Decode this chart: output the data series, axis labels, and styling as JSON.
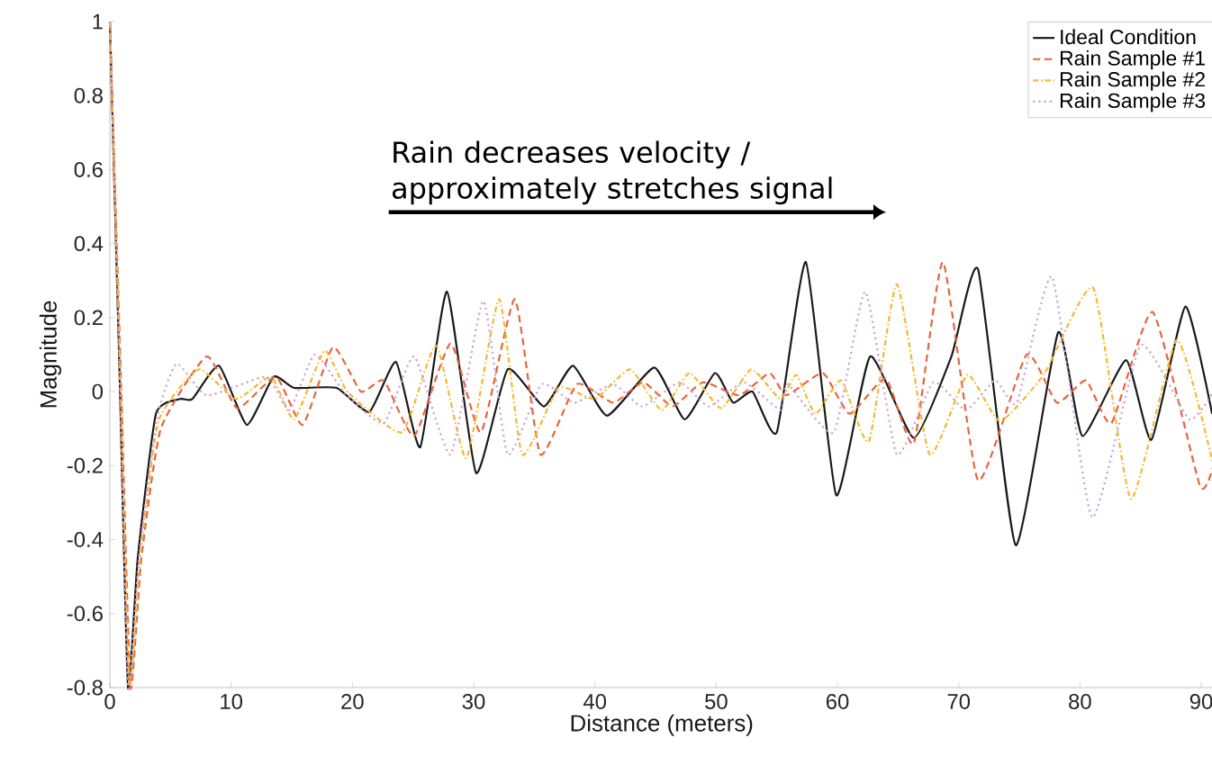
{
  "chart_data": {
    "type": "line",
    "xlabel": "Distance (meters)",
    "ylabel": "Magnitude",
    "xlim": [
      0,
      91
    ],
    "ylim": [
      -0.8,
      1
    ],
    "xticks": [
      0,
      10,
      20,
      30,
      40,
      50,
      60,
      70,
      80,
      90
    ],
    "yticks": [
      -0.8,
      -0.6,
      -0.4,
      -0.2,
      0,
      0.2,
      0.4,
      0.6,
      0.8,
      1
    ],
    "legend": "top right",
    "grid": false,
    "annotations": [
      "Rain decreases velocity / approximately stretches signal"
    ],
    "series": [
      {
        "name": "Ideal Condition",
        "color": "#1a1a1a",
        "line_style": "solid",
        "x": [
          0,
          0.8,
          1.5,
          2.3,
          3.8,
          5.8,
          6.8,
          9.0,
          11.3,
          13.5,
          15.2,
          18.7,
          21.4,
          23.6,
          25.6,
          27.8,
          30.2,
          32.8,
          35.8,
          38.2,
          41.0,
          44.9,
          47.4,
          49.9,
          51.4,
          53.0,
          55.0,
          57.4,
          59.9,
          62.7,
          66.3,
          69.4,
          71.6,
          74.7,
          78.2,
          80.2,
          83.8,
          85.9,
          88.7,
          90.9
        ],
        "values": [
          1,
          0.05,
          -0.8,
          -0.45,
          -0.06,
          -0.02,
          -0.02,
          0.07,
          -0.09,
          0.04,
          0.01,
          0.01,
          -0.055,
          0.08,
          -0.15,
          0.27,
          -0.22,
          0.06,
          -0.04,
          0.07,
          -0.065,
          0.065,
          -0.075,
          0.05,
          -0.03,
          0.0,
          -0.11,
          0.35,
          -0.28,
          0.095,
          -0.125,
          0.095,
          0.33,
          -0.415,
          0.16,
          -0.12,
          0.085,
          -0.13,
          0.23,
          -0.06
        ]
      },
      {
        "name": "Rain Sample #1",
        "color": "#e8643c",
        "line_style": "dashed",
        "x": [
          0,
          0.9,
          1.7,
          2.6,
          4.2,
          8.0,
          10.5,
          13.7,
          15.9,
          18.4,
          20.7,
          22.6,
          25.1,
          28.1,
          30.6,
          33.4,
          35.5,
          38.5,
          41.5,
          44.0,
          46.4,
          48.9,
          51.9,
          54.4,
          55.8,
          58.8,
          61.0,
          64.0,
          66.3,
          68.7,
          71.6,
          75.6,
          78.1,
          80.5,
          82.6,
          86.0,
          89.9,
          91
        ],
        "values": [
          1,
          0.05,
          -0.8,
          -0.45,
          -0.1,
          0.095,
          -0.045,
          0.04,
          -0.09,
          0.12,
          0.0,
          0.03,
          -0.12,
          0.13,
          -0.11,
          0.25,
          -0.17,
          0.02,
          -0.03,
          0.025,
          -0.04,
          0.025,
          -0.01,
          0.05,
          -0.01,
          0.05,
          -0.06,
          0.035,
          -0.14,
          0.35,
          -0.24,
          0.1,
          -0.03,
          0.03,
          -0.085,
          0.215,
          -0.255,
          -0.2
        ]
      },
      {
        "name": "Rain Sample #2",
        "color": "#f5b82e",
        "line_style": "dashdot",
        "x": [
          0,
          0.85,
          1.6,
          2.5,
          4.0,
          7.3,
          10.4,
          13.3,
          15.2,
          17.7,
          19.6,
          24.1,
          26.9,
          29.4,
          32.1,
          34.0,
          37.0,
          40.0,
          42.9,
          45.5,
          47.8,
          50.4,
          52.9,
          55.3,
          56.6,
          58.2,
          60.3,
          62.6,
          64.9,
          67.6,
          70.7,
          73.4,
          77.1,
          81.1,
          84.2,
          88.0,
          91
        ],
        "values": [
          1,
          0.05,
          -0.8,
          -0.45,
          -0.08,
          0.06,
          -0.02,
          0.04,
          -0.075,
          0.11,
          0.0,
          -0.11,
          0.125,
          -0.18,
          0.25,
          -0.17,
          0.01,
          -0.02,
          0.06,
          -0.05,
          0.05,
          -0.045,
          0.06,
          -0.02,
          0.045,
          -0.06,
          0.03,
          -0.135,
          0.29,
          -0.17,
          0.045,
          -0.08,
          0.05,
          0.28,
          -0.29,
          0.14,
          -0.2
        ]
      },
      {
        "name": "Rain Sample #3",
        "color": "#c9a0dc",
        "line_style": "dotted",
        "x": [
          0,
          0.8,
          1.5,
          2.4,
          3.9,
          5.5,
          8.0,
          12.9,
          14.8,
          16.9,
          19.4,
          22.6,
          25.1,
          28.1,
          30.8,
          32.8,
          35.6,
          38.3,
          41.5,
          43.9,
          47.0,
          49.4,
          52.3,
          55.3,
          55.9,
          59.7,
          62.3,
          64.9,
          67.9,
          70.6,
          73.0,
          74.8,
          77.7,
          81.0,
          85.0,
          89.0,
          91
        ],
        "values": [
          1,
          0.05,
          -0.8,
          -0.45,
          -0.07,
          0.075,
          -0.01,
          0.04,
          -0.05,
          0.1,
          -0.005,
          -0.085,
          0.095,
          -0.17,
          0.245,
          -0.17,
          0.02,
          -0.03,
          0.02,
          -0.04,
          0.025,
          -0.04,
          0.025,
          -0.05,
          0.02,
          -0.11,
          0.27,
          -0.17,
          0.025,
          -0.05,
          0.03,
          -0.03,
          0.31,
          -0.34,
          0.125,
          -0.075,
          0.0
        ]
      }
    ]
  }
}
